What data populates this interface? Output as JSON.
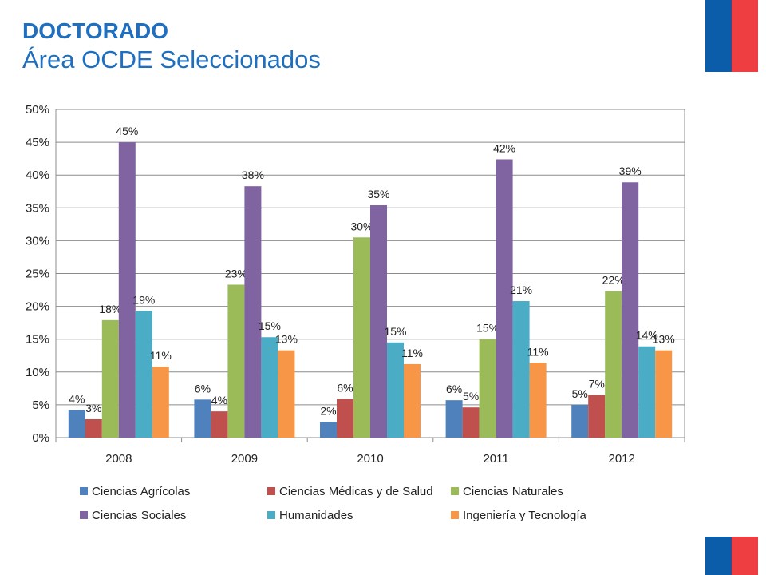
{
  "header": {
    "title": "DOCTORADO",
    "subtitle": "Área OCDE Seleccionados"
  },
  "chart_data": {
    "type": "bar",
    "categories": [
      "2008",
      "2009",
      "2010",
      "2011",
      "2012"
    ],
    "ylim": [
      0,
      50
    ],
    "yticks": [
      "0%",
      "5%",
      "10%",
      "15%",
      "20%",
      "25%",
      "30%",
      "35%",
      "40%",
      "45%",
      "50%"
    ],
    "grid": true,
    "legend_position": "bottom",
    "series": [
      {
        "name": "Ciencias Agrícolas",
        "color": "#4f81bd",
        "values": [
          4.2,
          5.8,
          2.4,
          5.7,
          5.0
        ],
        "labels": [
          "4%",
          "6%",
          "2%",
          "6%",
          "5%"
        ]
      },
      {
        "name": "Ciencias Médicas y de Salud",
        "color": "#c0504d",
        "values": [
          2.8,
          4.0,
          5.9,
          4.6,
          6.5
        ],
        "labels": [
          "3%",
          "4%",
          "6%",
          "5%",
          "7%"
        ]
      },
      {
        "name": "Ciencias Naturales",
        "color": "#9bbb59",
        "values": [
          17.9,
          23.3,
          30.5,
          15.0,
          22.3
        ],
        "labels": [
          "18%",
          "23%",
          "30%",
          "15%",
          "22%"
        ]
      },
      {
        "name": "Ciencias Sociales",
        "color": "#8064a2",
        "values": [
          45.0,
          38.3,
          35.4,
          42.4,
          38.9
        ],
        "labels": [
          "45%",
          "38%",
          "35%",
          "42%",
          "39%"
        ]
      },
      {
        "name": "Humanidades",
        "color": "#4bacc6",
        "values": [
          19.3,
          15.3,
          14.5,
          20.8,
          13.9
        ],
        "labels": [
          "19%",
          "15%",
          "15%",
          "21%",
          "14%"
        ]
      },
      {
        "name": "Ingeniería y Tecnología",
        "color": "#f79646",
        "values": [
          10.8,
          13.3,
          11.2,
          11.4,
          13.3
        ],
        "labels": [
          "11%",
          "13%",
          "11%",
          "11%",
          "13%"
        ]
      }
    ]
  }
}
